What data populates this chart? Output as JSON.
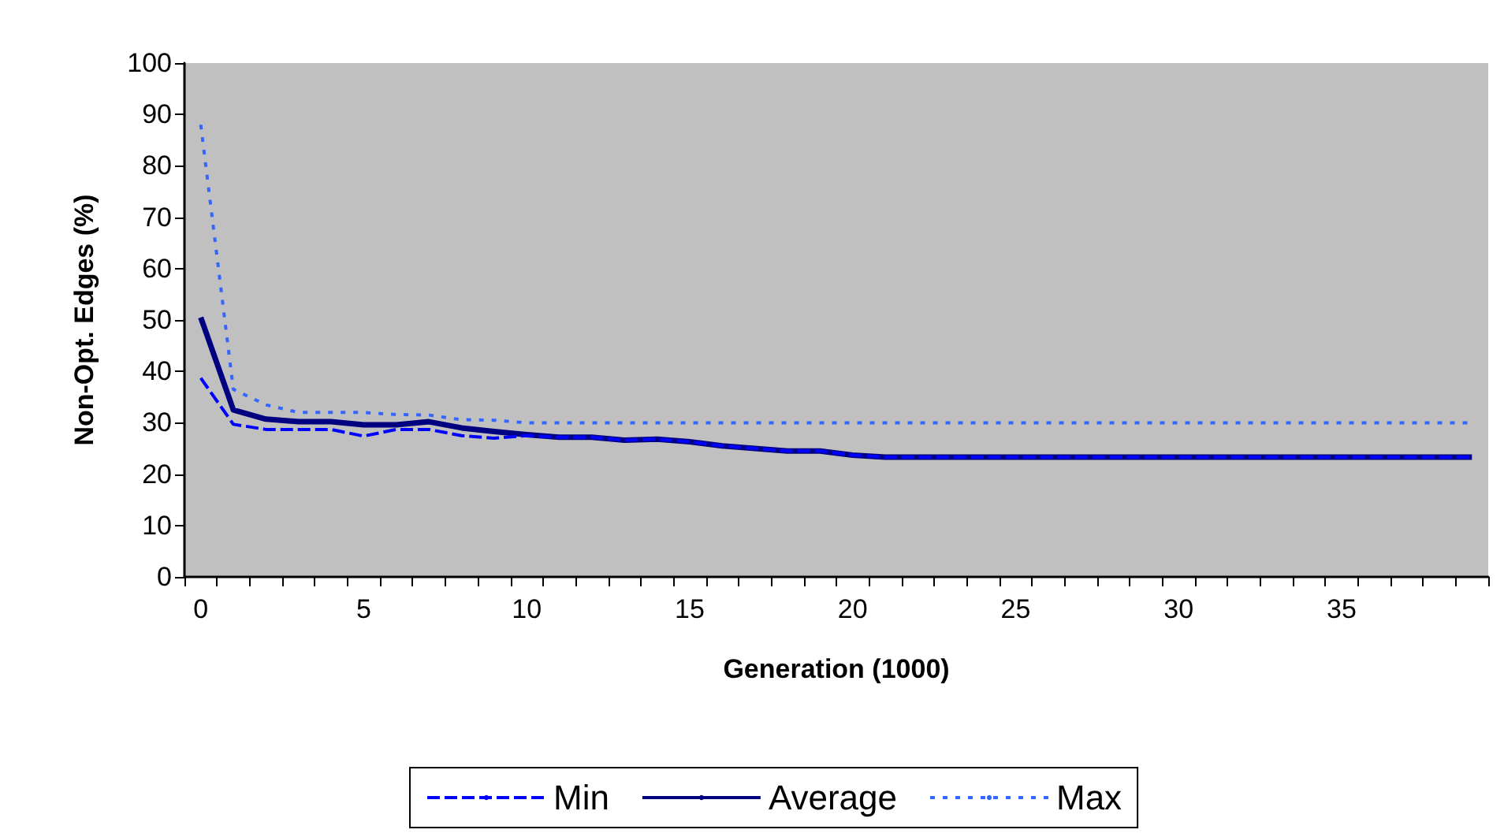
{
  "chart_data": {
    "type": "line",
    "xlabel": "Generation (1000)",
    "ylabel": "Non-Opt. Edges (%)",
    "categories": [
      "0",
      null,
      null,
      null,
      null,
      "5",
      null,
      null,
      null,
      null,
      "10",
      null,
      null,
      null,
      null,
      "15",
      null,
      null,
      null,
      null,
      "20",
      null,
      null,
      null,
      null,
      "25",
      null,
      null,
      null,
      null,
      "30",
      null,
      null,
      null,
      null,
      "35",
      null,
      null,
      null,
      null
    ],
    "series": [
      {
        "name": "Min",
        "color": "#0000ff",
        "line_style": "dashed",
        "values": [
          38.7,
          29.7,
          28.7,
          28.7,
          28.7,
          27.4,
          28.7,
          28.7,
          27.5,
          27,
          27.5,
          27.2,
          27.2,
          26.6,
          26.8,
          26.3,
          25.5,
          25,
          24.5,
          24.5,
          23.7,
          23.3,
          23.3,
          23.3,
          23.3,
          23.3,
          23.3,
          23.3,
          23.3,
          23.3,
          23.3,
          23.3,
          23.3,
          23.3,
          23.3,
          23.3,
          23.3,
          23.3,
          23.3,
          23.3
        ]
      },
      {
        "name": "Average",
        "color": "#000080",
        "line_style": "solid",
        "values": [
          50.5,
          32.5,
          30.7,
          30.2,
          30.2,
          29.6,
          29.6,
          30.2,
          29,
          28.3,
          27.7,
          27.2,
          27.2,
          26.6,
          26.8,
          26.3,
          25.5,
          25,
          24.5,
          24.5,
          23.7,
          23.3,
          23.3,
          23.3,
          23.3,
          23.3,
          23.3,
          23.3,
          23.3,
          23.3,
          23.3,
          23.3,
          23.3,
          23.3,
          23.3,
          23.3,
          23.3,
          23.3,
          23.3,
          23.3
        ]
      },
      {
        "name": "Max",
        "color": "#3366ff",
        "line_style": "dotted",
        "values": [
          88,
          36.5,
          33.5,
          32,
          32,
          32,
          31.6,
          31.5,
          30.6,
          30.5,
          30,
          30,
          30,
          30,
          30,
          30,
          30,
          30,
          30,
          30,
          30,
          30,
          30,
          30,
          30,
          30,
          30,
          30,
          30,
          30,
          30,
          30,
          30,
          30,
          30,
          30,
          30,
          30,
          30,
          30
        ]
      }
    ],
    "ylim": [
      0,
      100
    ],
    "yticks": [
      0,
      10,
      20,
      30,
      40,
      50,
      60,
      70,
      80,
      90,
      100
    ],
    "grid": false,
    "legend": "bottom",
    "marker": "none"
  }
}
